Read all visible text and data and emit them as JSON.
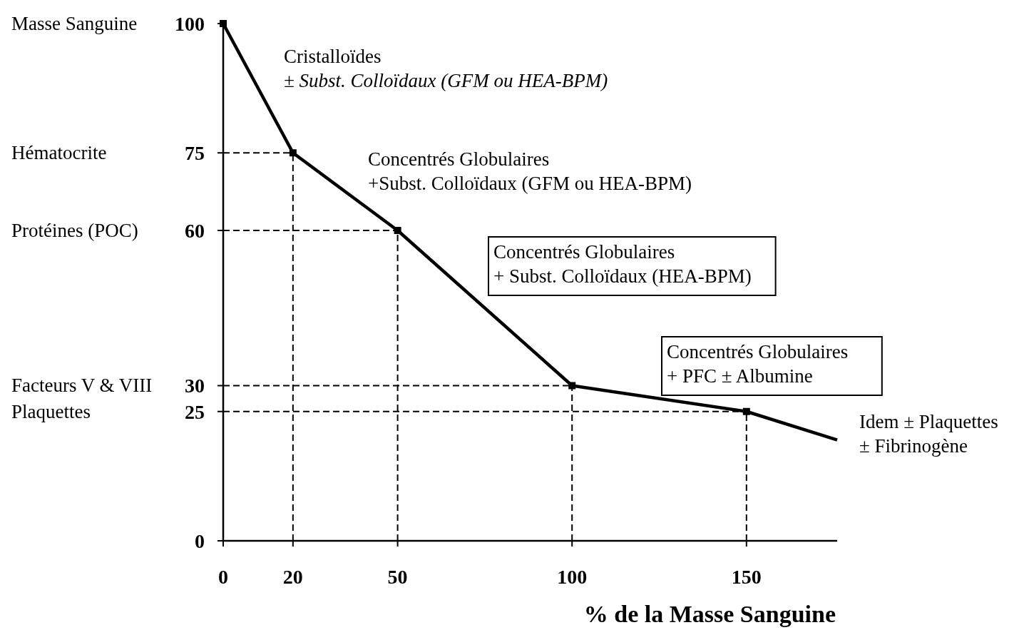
{
  "chart_data": {
    "type": "line",
    "xlabel": "% de la Masse Sanguine",
    "x": [
      0,
      20,
      50,
      100,
      150,
      176
    ],
    "series": [
      {
        "color": "#000000",
        "values": [
          100,
          75,
          60,
          30,
          25,
          19.5
        ]
      }
    ],
    "xlim": [
      0,
      176
    ],
    "xticks": [
      0,
      20,
      50,
      100,
      150
    ],
    "ylim": [
      0,
      100
    ],
    "yticks": [
      0,
      25,
      30,
      60,
      75,
      100
    ],
    "marker": "square",
    "line_style": "solid",
    "grid": false,
    "ref_lines": [
      {
        "axis": "y",
        "value": 75,
        "line_style": "dashed"
      },
      {
        "axis": "y",
        "value": 60,
        "line_style": "dashed"
      },
      {
        "axis": "y",
        "value": 30,
        "line_style": "dashed"
      },
      {
        "axis": "y",
        "value": 25,
        "line_style": "dashed"
      },
      {
        "axis": "x",
        "value": 20,
        "line_style": "dashed"
      },
      {
        "axis": "x",
        "value": 50,
        "line_style": "dashed"
      },
      {
        "axis": "x",
        "value": 100,
        "line_style": "dashed"
      },
      {
        "axis": "x",
        "value": 150,
        "line_style": "dashed"
      }
    ],
    "annotations": [
      "Cristalloïdes\n± Subst. Colloïdaux (GFM ou HEA-BPM)",
      "Concentrés Globulaires\n+Subst. Colloïdaux (GFM ou HEA-BPM)",
      "Concentrés Globulaires\n+ Subst. Colloïdaux (HEA-BPM)",
      "Concentrés Globulaires\n+ PFC ± Albumine",
      "Idem ± Plaquettes\n± Fibrinogène",
      "Masse Sanguine",
      "Hématocrite",
      "Protéines (POC)",
      "Facteurs V & VIII",
      "Plaquettes"
    ]
  }
}
